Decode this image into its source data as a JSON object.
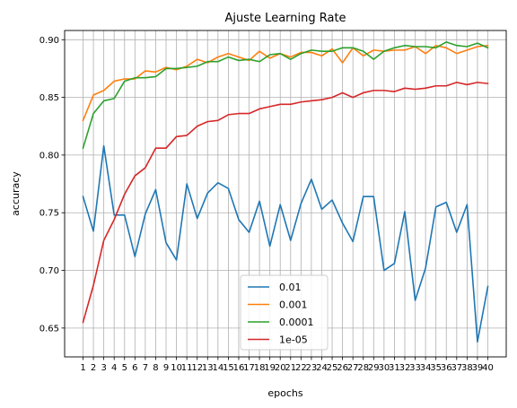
{
  "chart_data": {
    "type": "line",
    "title": "Ajuste Learning Rate",
    "xlabel": "epochs",
    "ylabel": "accuracy",
    "x": [
      1,
      2,
      3,
      4,
      5,
      6,
      7,
      8,
      9,
      10,
      11,
      12,
      13,
      14,
      15,
      16,
      17,
      18,
      19,
      20,
      21,
      22,
      23,
      24,
      25,
      26,
      27,
      28,
      29,
      30,
      31,
      32,
      33,
      34,
      35,
      36,
      37,
      38,
      39,
      40
    ],
    "ylim": [
      0.625,
      0.908
    ],
    "yticks": [
      0.65,
      0.7,
      0.75,
      0.8,
      0.85,
      0.9
    ],
    "ytick_labels": [
      "0.65",
      "0.70",
      "0.75",
      "0.80",
      "0.85",
      "0.90"
    ],
    "grid": true,
    "legend_position": "lower-center",
    "series": [
      {
        "name": "0.01",
        "color": "#1f77b4",
        "values": [
          0.764,
          0.734,
          0.808,
          0.748,
          0.748,
          0.712,
          0.749,
          0.77,
          0.724,
          0.709,
          0.775,
          0.745,
          0.767,
          0.776,
          0.771,
          0.744,
          0.733,
          0.76,
          0.721,
          0.757,
          0.726,
          0.758,
          0.779,
          0.753,
          0.761,
          0.741,
          0.725,
          0.764,
          0.764,
          0.7,
          0.706,
          0.751,
          0.674,
          0.702,
          0.755,
          0.759,
          0.733,
          0.757,
          0.638,
          0.686
        ]
      },
      {
        "name": "0.001",
        "color": "#ff7f0e",
        "values": [
          0.83,
          0.852,
          0.856,
          0.864,
          0.866,
          0.866,
          0.873,
          0.872,
          0.876,
          0.874,
          0.877,
          0.883,
          0.88,
          0.885,
          0.888,
          0.885,
          0.882,
          0.89,
          0.884,
          0.888,
          0.885,
          0.889,
          0.889,
          0.886,
          0.892,
          0.88,
          0.893,
          0.886,
          0.891,
          0.89,
          0.891,
          0.891,
          0.894,
          0.888,
          0.895,
          0.893,
          0.888,
          0.891,
          0.894,
          0.895
        ]
      },
      {
        "name": "0.0001",
        "color": "#2ca02c",
        "values": [
          0.806,
          0.836,
          0.847,
          0.849,
          0.864,
          0.867,
          0.867,
          0.868,
          0.875,
          0.875,
          0.876,
          0.877,
          0.881,
          0.881,
          0.885,
          0.882,
          0.883,
          0.881,
          0.887,
          0.888,
          0.883,
          0.888,
          0.891,
          0.89,
          0.89,
          0.893,
          0.893,
          0.89,
          0.883,
          0.89,
          0.893,
          0.895,
          0.894,
          0.894,
          0.893,
          0.898,
          0.895,
          0.894,
          0.897,
          0.893
        ]
      },
      {
        "name": "1e-05",
        "color": "#d62728",
        "values": [
          0.655,
          0.687,
          0.726,
          0.744,
          0.766,
          0.782,
          0.789,
          0.806,
          0.806,
          0.816,
          0.817,
          0.825,
          0.829,
          0.83,
          0.835,
          0.836,
          0.836,
          0.84,
          0.842,
          0.844,
          0.844,
          0.846,
          0.847,
          0.848,
          0.85,
          0.854,
          0.85,
          0.854,
          0.856,
          0.856,
          0.855,
          0.858,
          0.857,
          0.858,
          0.86,
          0.86,
          0.863,
          0.861,
          0.863,
          0.862
        ]
      }
    ]
  }
}
